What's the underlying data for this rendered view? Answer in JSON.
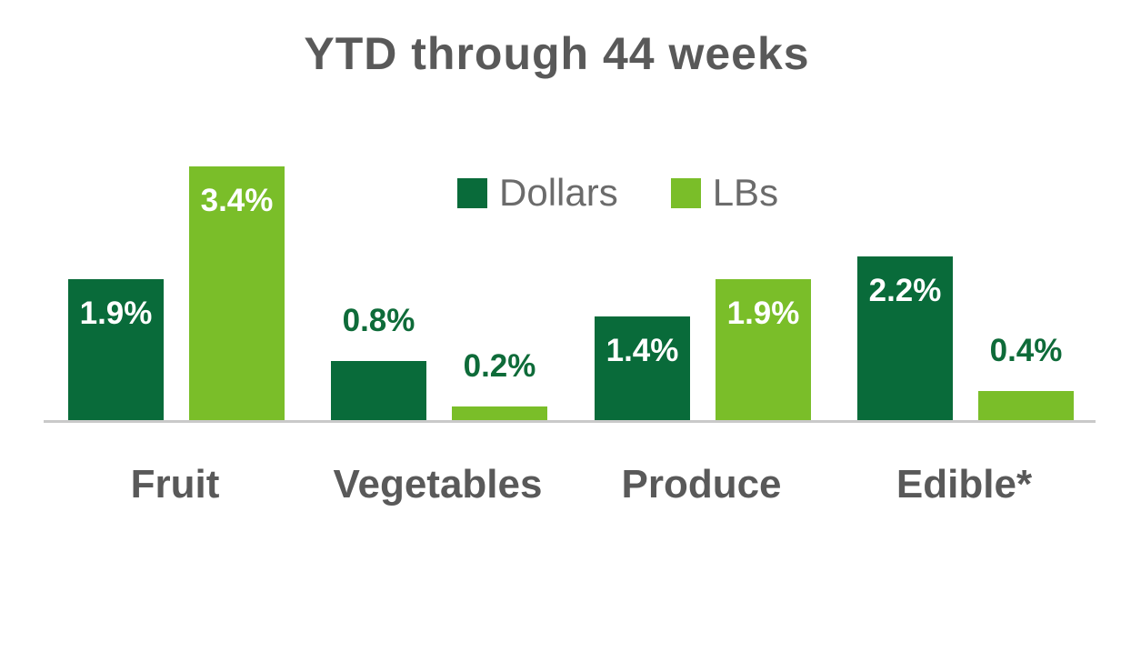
{
  "title": "YTD through 44 weeks",
  "legend": {
    "items": [
      {
        "label": "Dollars",
        "color": "#096b3a"
      },
      {
        "label": "LBs",
        "color": "#7abe29"
      }
    ]
  },
  "colors": {
    "dollars_green": "#096b3a",
    "lbs_green": "#7abe29",
    "inside_label": "#ffffff",
    "outside_label": "#0e6b39",
    "text_gray": "#595959",
    "legend_gray": "#6b6b6b",
    "axis_gray": "#c9c9c9",
    "background": "#ffffff"
  },
  "chart_data": {
    "type": "bar",
    "title": "YTD through 44 weeks",
    "categories": [
      "Fruit",
      "Vegetables",
      "Produce",
      "Edible*"
    ],
    "series": [
      {
        "name": "Dollars",
        "color": "#096b3a",
        "values": [
          1.9,
          0.8,
          1.4,
          2.2
        ],
        "labels": [
          "1.9%",
          "0.8%",
          "1.4%",
          "2.2%"
        ],
        "label_inside": [
          true,
          false,
          true,
          true
        ]
      },
      {
        "name": "LBs",
        "color": "#7abe29",
        "values": [
          3.4,
          0.2,
          1.9,
          0.4
        ],
        "labels": [
          "3.4%",
          "0.2%",
          "1.9%",
          "0.4%"
        ],
        "label_inside": [
          true,
          false,
          true,
          false
        ]
      }
    ],
    "unit": "%",
    "ylim": [
      0,
      3.7
    ],
    "grid": false,
    "y_axis_visible": false,
    "x_axis_line": true,
    "legend_position": "upper-center",
    "data_label_rule": "labels shown inside bar top when bar is tall, above bar in dark green when bar is short"
  }
}
